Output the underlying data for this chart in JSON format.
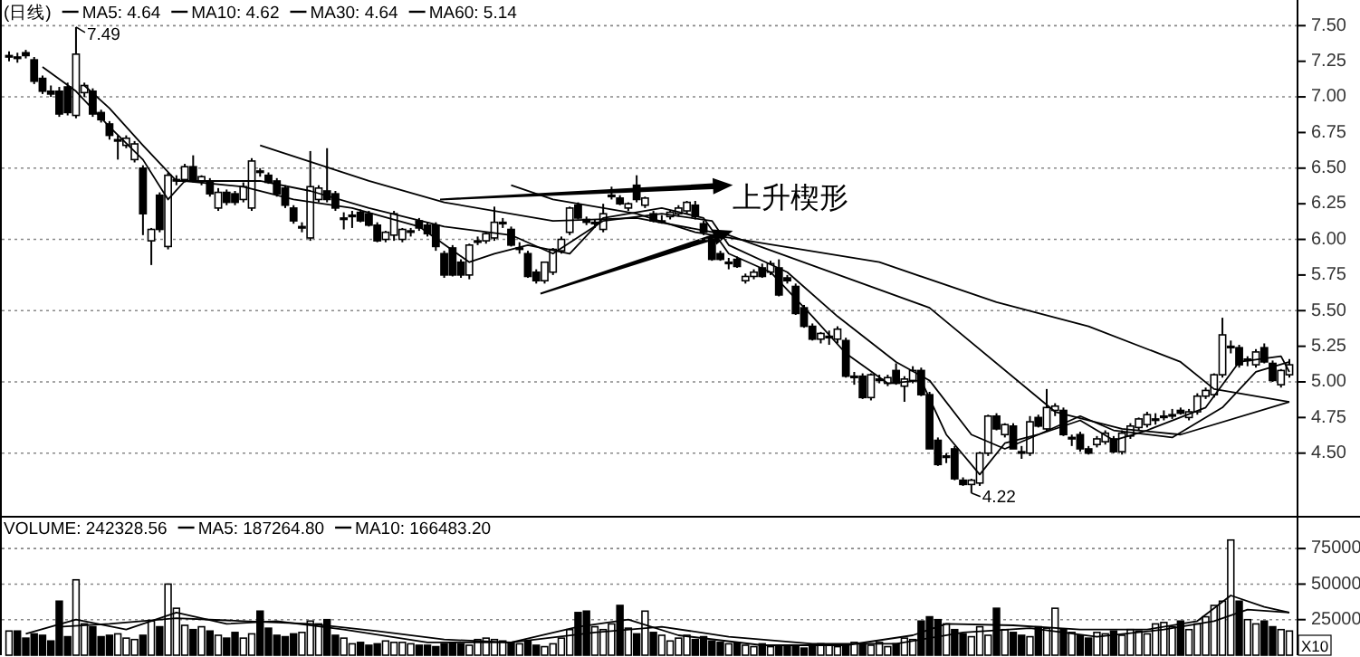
{
  "chart_data": [
    {
      "type": "candlestick",
      "title": "(日线)",
      "categories": [
        null,
        null,
        null,
        null,
        null,
        null,
        null,
        null,
        null,
        null,
        null,
        null,
        null,
        null,
        null,
        null,
        null,
        null,
        null,
        null,
        null,
        null,
        null,
        null,
        null,
        null,
        null,
        null,
        null,
        null,
        null,
        null,
        null,
        null,
        null,
        null,
        null,
        null,
        null,
        null,
        null,
        null,
        null,
        null,
        null,
        null,
        null,
        null,
        null,
        null,
        null,
        null,
        null,
        null,
        null,
        null,
        null,
        null,
        null,
        null,
        null,
        null,
        null,
        null,
        null,
        null,
        null,
        null,
        null,
        null,
        null,
        null,
        null,
        null,
        null,
        null,
        null,
        null,
        null,
        null,
        null,
        null,
        null,
        null,
        null,
        null,
        null,
        null,
        null,
        null,
        null,
        null,
        null,
        null,
        null,
        null,
        null,
        null,
        null,
        null,
        null,
        null,
        null,
        null,
        null,
        null,
        null,
        null,
        null,
        null,
        null,
        null,
        null,
        null,
        null,
        null,
        null,
        null,
        null,
        null,
        null,
        null,
        null,
        null,
        null,
        null,
        null,
        null,
        null,
        null,
        null,
        null,
        null,
        null,
        null,
        null,
        null,
        null,
        null,
        null,
        null,
        null,
        null,
        null,
        null,
        null,
        null,
        null,
        null,
        null,
        null,
        null,
        null,
        null
      ],
      "ohlc": [
        [
          7.29,
          7.32,
          7.25,
          7.29
        ],
        [
          7.28,
          7.31,
          7.24,
          7.27
        ],
        [
          7.31,
          7.33,
          7.27,
          7.29
        ],
        [
          7.26,
          7.28,
          7.09,
          7.11
        ],
        [
          7.13,
          7.15,
          7.02,
          7.04
        ],
        [
          7.04,
          7.08,
          7.0,
          7.02
        ],
        [
          7.04,
          7.07,
          6.86,
          6.88
        ],
        [
          7.07,
          7.1,
          6.87,
          6.89
        ],
        [
          6.87,
          7.49,
          6.85,
          7.3
        ],
        [
          7.03,
          7.1,
          7.0,
          7.08
        ],
        [
          7.04,
          7.06,
          6.86,
          6.88
        ],
        [
          6.89,
          6.91,
          6.82,
          6.84
        ],
        [
          6.81,
          6.83,
          6.7,
          6.73
        ],
        [
          6.7,
          6.73,
          6.56,
          6.7
        ],
        [
          6.66,
          6.73,
          6.64,
          6.71
        ],
        [
          6.56,
          6.69,
          6.54,
          6.67
        ],
        [
          6.5,
          6.52,
          6.03,
          6.18
        ],
        [
          5.99,
          6.08,
          5.82,
          6.07
        ],
        [
          6.31,
          6.33,
          6.05,
          6.07
        ],
        [
          5.95,
          6.47,
          5.93,
          6.45
        ],
        [
          6.42,
          6.45,
          6.38,
          6.42
        ],
        [
          6.42,
          6.53,
          6.4,
          6.51
        ],
        [
          6.51,
          6.59,
          6.4,
          6.42
        ],
        [
          6.41,
          6.45,
          6.38,
          6.44
        ],
        [
          6.41,
          6.43,
          6.3,
          6.32
        ],
        [
          6.22,
          6.36,
          6.2,
          6.33
        ],
        [
          6.33,
          6.35,
          6.24,
          6.26
        ],
        [
          6.32,
          6.34,
          6.24,
          6.26
        ],
        [
          6.28,
          6.4,
          6.26,
          6.37
        ],
        [
          6.22,
          6.57,
          6.2,
          6.55
        ],
        [
          6.48,
          6.5,
          6.44,
          6.47
        ],
        [
          6.45,
          6.47,
          6.39,
          6.4
        ],
        [
          6.41,
          6.43,
          6.3,
          6.32
        ],
        [
          6.36,
          6.38,
          6.22,
          6.24
        ],
        [
          6.22,
          6.24,
          6.11,
          6.13
        ],
        [
          6.09,
          6.12,
          6.05,
          6.09
        ],
        [
          6.01,
          6.62,
          5.99,
          6.37
        ],
        [
          6.28,
          6.38,
          6.26,
          6.36
        ],
        [
          6.34,
          6.64,
          6.26,
          6.28
        ],
        [
          6.32,
          6.34,
          6.2,
          6.22
        ],
        [
          6.15,
          6.19,
          6.07,
          6.15
        ],
        [
          6.17,
          6.2,
          6.08,
          6.17
        ],
        [
          6.19,
          6.21,
          6.12,
          6.13
        ],
        [
          6.18,
          6.2,
          6.09,
          6.1
        ],
        [
          6.1,
          6.12,
          5.98,
          5.99
        ],
        [
          6.0,
          6.06,
          5.98,
          6.05
        ],
        [
          6.03,
          6.2,
          5.99,
          6.18
        ],
        [
          6.0,
          6.08,
          5.98,
          6.07
        ],
        [
          6.05,
          6.08,
          6.02,
          6.06
        ],
        [
          6.13,
          6.15,
          6.06,
          6.08
        ],
        [
          6.1,
          6.12,
          6.02,
          6.04
        ],
        [
          6.1,
          6.12,
          5.92,
          5.95
        ],
        [
          5.9,
          5.92,
          5.73,
          5.75
        ],
        [
          5.94,
          5.96,
          5.74,
          5.75
        ],
        [
          5.84,
          5.86,
          5.73,
          5.75
        ],
        [
          5.75,
          5.97,
          5.72,
          5.96
        ],
        [
          5.99,
          6.02,
          5.96,
          5.99
        ],
        [
          5.99,
          6.05,
          5.97,
          6.04
        ],
        [
          6.01,
          6.23,
          5.99,
          6.12
        ],
        [
          6.12,
          6.15,
          6.08,
          6.12
        ],
        [
          6.07,
          6.09,
          5.95,
          5.96
        ],
        [
          5.94,
          5.98,
          5.9,
          5.94
        ],
        [
          5.9,
          5.92,
          5.73,
          5.74
        ],
        [
          5.77,
          5.79,
          5.69,
          5.71
        ],
        [
          5.71,
          5.84,
          5.69,
          5.84
        ],
        [
          5.77,
          5.94,
          5.75,
          5.93
        ],
        [
          5.92,
          6.02,
          5.9,
          6.0
        ],
        [
          6.05,
          6.23,
          6.03,
          6.22
        ],
        [
          6.24,
          6.26,
          6.14,
          6.15
        ],
        [
          6.14,
          6.16,
          6.1,
          6.12
        ],
        [
          6.12,
          6.14,
          6.08,
          6.12
        ],
        [
          6.07,
          6.25,
          6.05,
          6.18
        ],
        [
          6.31,
          6.37,
          6.28,
          6.31
        ],
        [
          6.29,
          6.31,
          6.24,
          6.25
        ],
        [
          6.22,
          6.26,
          6.2,
          6.25
        ],
        [
          6.38,
          6.45,
          6.26,
          6.28
        ],
        [
          6.24,
          6.3,
          6.22,
          6.29
        ],
        [
          6.18,
          6.2,
          6.12,
          6.13
        ],
        [
          6.13,
          6.17,
          6.11,
          6.13
        ],
        [
          6.16,
          6.2,
          6.14,
          6.19
        ],
        [
          6.18,
          6.24,
          6.16,
          6.22
        ],
        [
          6.2,
          6.27,
          6.18,
          6.26
        ],
        [
          6.24,
          6.27,
          6.14,
          6.16
        ],
        [
          6.11,
          6.13,
          6.03,
          6.05
        ],
        [
          6.0,
          6.03,
          5.85,
          5.86
        ],
        [
          5.9,
          5.92,
          5.85,
          5.86
        ],
        [
          5.84,
          5.87,
          5.79,
          5.84
        ],
        [
          5.86,
          5.88,
          5.8,
          5.81
        ],
        [
          5.71,
          5.76,
          5.69,
          5.74
        ],
        [
          5.74,
          5.79,
          5.72,
          5.77
        ],
        [
          5.8,
          5.83,
          5.73,
          5.74
        ],
        [
          5.77,
          5.85,
          5.75,
          5.83
        ],
        [
          5.8,
          5.86,
          5.6,
          5.61
        ],
        [
          5.73,
          5.75,
          5.69,
          5.71
        ],
        [
          5.67,
          5.69,
          5.47,
          5.48
        ],
        [
          5.52,
          5.54,
          5.38,
          5.39
        ],
        [
          5.39,
          5.41,
          5.29,
          5.3
        ],
        [
          5.3,
          5.35,
          5.27,
          5.34
        ],
        [
          5.32,
          5.36,
          5.26,
          5.32
        ],
        [
          5.3,
          5.39,
          5.27,
          5.37
        ],
        [
          5.29,
          5.31,
          5.03,
          5.04
        ],
        [
          5.04,
          5.07,
          4.98,
          5.04
        ],
        [
          5.04,
          5.06,
          4.88,
          4.89
        ],
        [
          4.89,
          5.06,
          4.87,
          5.05
        ],
        [
          5.02,
          5.05,
          4.99,
          5.02
        ],
        [
          4.99,
          5.05,
          4.97,
          5.03
        ],
        [
          5.08,
          5.13,
          4.98,
          4.99
        ],
        [
          4.97,
          5.04,
          4.86,
          5.02
        ],
        [
          5.01,
          5.11,
          4.99,
          5.08
        ],
        [
          5.08,
          5.1,
          4.9,
          4.91
        ],
        [
          4.91,
          4.93,
          4.53,
          4.53
        ],
        [
          4.59,
          4.61,
          4.41,
          4.42
        ],
        [
          4.48,
          4.5,
          4.43,
          4.48
        ],
        [
          4.53,
          4.55,
          4.31,
          4.32
        ],
        [
          4.31,
          4.33,
          4.27,
          4.28
        ],
        [
          4.28,
          4.32,
          4.22,
          4.31
        ],
        [
          4.29,
          4.51,
          4.27,
          4.5
        ],
        [
          4.5,
          4.77,
          4.48,
          4.76
        ],
        [
          4.76,
          4.78,
          4.66,
          4.67
        ],
        [
          4.63,
          4.71,
          4.61,
          4.7
        ],
        [
          4.69,
          4.71,
          4.53,
          4.53
        ],
        [
          4.51,
          4.55,
          4.46,
          4.5
        ],
        [
          4.5,
          4.76,
          4.48,
          4.72
        ],
        [
          4.75,
          4.77,
          4.68,
          4.69
        ],
        [
          4.67,
          4.95,
          4.65,
          4.82
        ],
        [
          4.8,
          4.85,
          4.76,
          4.83
        ],
        [
          4.8,
          4.82,
          4.62,
          4.63
        ],
        [
          4.6,
          4.63,
          4.55,
          4.61
        ],
        [
          4.63,
          4.65,
          4.51,
          4.53
        ],
        [
          4.53,
          4.55,
          4.49,
          4.5
        ],
        [
          4.56,
          4.62,
          4.54,
          4.6
        ],
        [
          4.58,
          4.66,
          4.56,
          4.64
        ],
        [
          4.6,
          4.62,
          4.5,
          4.51
        ],
        [
          4.51,
          4.66,
          4.49,
          4.64
        ],
        [
          4.62,
          4.71,
          4.6,
          4.69
        ],
        [
          4.68,
          4.75,
          4.66,
          4.74
        ],
        [
          4.7,
          4.79,
          4.68,
          4.77
        ],
        [
          4.74,
          4.78,
          4.7,
          4.74
        ],
        [
          4.76,
          4.8,
          4.73,
          4.76
        ],
        [
          4.77,
          4.81,
          4.74,
          4.77
        ],
        [
          4.8,
          4.82,
          4.77,
          4.78
        ],
        [
          4.75,
          4.81,
          4.73,
          4.79
        ],
        [
          4.79,
          4.92,
          4.77,
          4.9
        ],
        [
          4.9,
          4.96,
          4.88,
          4.94
        ],
        [
          4.91,
          5.06,
          4.89,
          5.05
        ],
        [
          5.05,
          5.45,
          5.03,
          5.33
        ],
        [
          5.25,
          5.29,
          5.2,
          5.25
        ],
        [
          5.24,
          5.26,
          5.1,
          5.12
        ],
        [
          5.16,
          5.18,
          5.11,
          5.16
        ],
        [
          5.12,
          5.23,
          5.1,
          5.21
        ],
        [
          5.24,
          5.27,
          5.13,
          5.14
        ],
        [
          5.13,
          5.15,
          5.0,
          5.01
        ],
        [
          4.98,
          5.09,
          4.96,
          5.08
        ],
        [
          5.05,
          5.16,
          5.03,
          5.12
        ]
      ],
      "series": [
        {
          "name": "MA5: 4.64",
          "type": "line",
          "color": "#000000",
          "values": [
            null,
            null,
            null,
            null,
            7.21,
            null,
            null,
            null,
            7.04,
            null,
            null,
            null,
            6.79,
            null,
            null,
            null,
            6.56,
            null,
            null,
            6.28,
            null,
            6.41,
            null,
            null,
            null,
            null,
            null,
            null,
            6.37,
            null,
            null,
            null,
            null,
            null,
            6.28,
            null,
            null,
            null,
            null,
            null,
            null,
            6.22,
            null,
            null,
            null,
            null,
            null,
            null,
            null,
            6.09,
            null,
            null,
            null,
            null,
            null,
            5.84,
            null,
            null,
            5.9,
            null,
            null,
            null,
            5.96,
            null,
            null,
            null,
            null,
            5.9,
            null,
            null,
            null,
            6.15,
            null,
            null,
            null,
            null,
            null,
            null,
            6.22,
            null,
            null,
            null,
            null,
            6.15,
            null,
            null,
            5.9,
            null,
            null,
            null,
            null,
            5.77,
            null,
            null,
            null,
            null,
            5.46,
            null,
            null,
            null,
            5.2,
            null,
            null,
            null,
            null,
            4.99,
            null,
            null,
            null,
            5.01,
            null,
            null,
            4.63,
            null,
            null,
            null,
            4.35,
            null,
            null,
            4.57,
            null,
            null,
            null,
            4.63,
            null,
            null,
            null,
            null,
            4.73,
            null,
            null,
            null,
            4.59,
            null,
            null,
            null,
            4.66,
            null,
            null,
            null,
            null,
            null,
            null,
            4.82,
            null,
            null,
            null,
            5.14,
            null,
            null,
            null,
            null,
            5.18,
            5.07
          ]
        },
        {
          "name": "MA10: 4.62",
          "type": "line",
          "color": "#000000",
          "values": [
            null,
            null,
            null,
            null,
            null,
            null,
            null,
            null,
            null,
            7.08,
            null,
            null,
            6.92,
            null,
            null,
            null,
            6.66,
            null,
            null,
            null,
            6.41,
            null,
            null,
            null,
            null,
            null,
            null,
            null,
            null,
            null,
            6.41,
            null,
            null,
            null,
            null,
            null,
            6.34,
            null,
            null,
            null,
            null,
            null,
            null,
            6.22,
            null,
            null,
            null,
            null,
            null,
            null,
            null,
            null,
            6.09,
            null,
            null,
            null,
            null,
            null,
            null,
            null,
            6.03,
            null,
            null,
            null,
            null,
            5.9,
            null,
            null,
            null,
            null,
            null,
            6.13,
            null,
            null,
            null,
            null,
            null,
            null,
            6.18,
            null,
            null,
            null,
            null,
            null,
            6.13,
            null,
            5.96,
            null,
            null,
            null,
            null,
            null,
            null,
            5.77,
            null,
            null,
            null,
            null,
            null,
            5.46,
            null,
            null,
            null,
            null,
            null,
            null,
            5.14,
            null,
            null,
            null,
            5.01,
            null,
            null,
            null,
            null,
            4.63,
            null,
            null,
            null,
            4.53,
            null,
            null,
            null,
            4.63,
            null,
            null,
            null,
            null,
            4.76,
            null,
            null,
            null,
            4.66,
            null,
            null,
            null,
            null,
            null,
            null,
            4.61,
            null,
            null,
            null,
            null,
            null,
            4.82,
            null,
            null,
            null,
            5.07,
            null,
            null,
            null,
            5.14
          ]
        },
        {
          "name": "MA30: 4.64",
          "type": "line",
          "color": "#000000",
          "values": [
            null,
            null,
            null,
            null,
            null,
            null,
            null,
            null,
            null,
            null,
            null,
            null,
            null,
            null,
            null,
            null,
            null,
            null,
            null,
            null,
            null,
            null,
            null,
            null,
            null,
            null,
            null,
            null,
            null,
            null,
            6.66,
            null,
            null,
            null,
            null,
            null,
            null,
            null,
            null,
            null,
            null,
            null,
            null,
            6.41,
            null,
            null,
            null,
            null,
            null,
            null,
            null,
            null,
            6.26,
            null,
            null,
            null,
            null,
            null,
            null,
            null,
            null,
            null,
            null,
            null,
            null,
            6.13,
            null,
            null,
            null,
            null,
            null,
            null,
            null,
            null,
            null,
            6.15,
            null,
            null,
            null,
            null,
            null,
            null,
            null,
            null,
            null,
            null,
            6.03,
            null,
            null,
            null,
            null,
            null,
            null,
            null,
            null,
            null,
            null,
            null,
            null,
            null,
            null,
            null,
            null,
            null,
            null,
            null,
            null,
            null,
            null,
            null,
            5.52,
            null,
            null,
            null,
            null,
            null,
            null,
            null,
            null,
            null,
            null,
            null,
            null,
            null,
            null,
            4.79,
            null,
            null,
            null,
            null,
            null,
            null,
            null,
            4.67,
            null,
            null,
            null,
            null,
            null,
            null,
            4.63,
            null,
            null,
            null,
            null,
            null,
            null,
            null,
            null,
            null,
            null,
            null,
            null,
            4.86
          ]
        },
        {
          "name": "MA60: 5.14",
          "type": "line",
          "color": "#000000",
          "values": [
            null,
            null,
            null,
            null,
            null,
            null,
            null,
            null,
            null,
            null,
            null,
            null,
            null,
            null,
            null,
            null,
            null,
            null,
            null,
            null,
            null,
            null,
            null,
            null,
            null,
            null,
            null,
            null,
            null,
            null,
            null,
            null,
            null,
            null,
            null,
            null,
            null,
            null,
            null,
            null,
            null,
            null,
            null,
            null,
            null,
            null,
            null,
            null,
            null,
            null,
            null,
            null,
            null,
            null,
            null,
            null,
            null,
            null,
            null,
            null,
            6.38,
            null,
            null,
            null,
            null,
            6.28,
            null,
            null,
            null,
            null,
            null,
            null,
            null,
            null,
            null,
            6.18,
            null,
            null,
            null,
            null,
            null,
            null,
            6.05,
            null,
            null,
            null,
            null,
            null,
            null,
            null,
            null,
            null,
            null,
            null,
            null,
            null,
            null,
            null,
            null,
            null,
            null,
            null,
            null,
            null,
            5.84,
            null,
            null,
            null,
            null,
            null,
            null,
            null,
            null,
            null,
            null,
            null,
            null,
            null,
            5.56,
            null,
            null,
            null,
            null,
            null,
            null,
            null,
            null,
            null,
            null,
            5.39,
            null,
            null,
            null,
            null,
            null,
            null,
            null,
            null,
            null,
            null,
            5.14,
            null,
            null,
            null,
            4.95,
            null,
            null,
            null,
            null,
            null,
            null,
            null,
            null,
            4.86
          ]
        }
      ],
      "ylim": [
        4.06,
        7.68
      ],
      "yticks": [
        {
          "value": 4.5,
          "label": "4.50"
        },
        {
          "value": 4.75,
          "label": "4.75"
        },
        {
          "value": 5,
          "label": "5.00"
        },
        {
          "value": 5.25,
          "label": "5.25"
        },
        {
          "value": 5.5,
          "label": "5.50"
        },
        {
          "value": 5.75,
          "label": "5.75"
        },
        {
          "value": 6,
          "label": "6.00"
        },
        {
          "value": 6.25,
          "label": "6.25"
        },
        {
          "value": 6.5,
          "label": "6.50"
        },
        {
          "value": 6.75,
          "label": "6.75"
        },
        {
          "value": 7,
          "label": "7.00"
        },
        {
          "value": 7.25,
          "label": "7.25"
        },
        {
          "value": 7.5,
          "label": "7.50"
        }
      ],
      "grid": "y",
      "legend": "top left",
      "annotations": [
        "7.49",
        "4.22",
        "上升楔形"
      ]
    },
    {
      "type": "bar",
      "categories": [
        null,
        null,
        null,
        null,
        null,
        null,
        null,
        null,
        null,
        null,
        null,
        null,
        null,
        null,
        null,
        null,
        null,
        null,
        null,
        null,
        null,
        null,
        null,
        null,
        null,
        null,
        null,
        null,
        null,
        null,
        null,
        null,
        null,
        null,
        null,
        null,
        null,
        null,
        null,
        null,
        null,
        null,
        null,
        null,
        null,
        null,
        null,
        null,
        null,
        null,
        null,
        null,
        null,
        null,
        null,
        null,
        null,
        null,
        null,
        null,
        null,
        null,
        null,
        null,
        null,
        null,
        null,
        null,
        null,
        null,
        null,
        null,
        null,
        null,
        null,
        null,
        null,
        null,
        null,
        null,
        null,
        null,
        null,
        null,
        null,
        null,
        null,
        null,
        null,
        null,
        null,
        null,
        null,
        null,
        null,
        null,
        null,
        null,
        null,
        null,
        null,
        null,
        null,
        null,
        null,
        null,
        null,
        null,
        null,
        null,
        null,
        null,
        null,
        null,
        null,
        null,
        null,
        null,
        null,
        null,
        null,
        null,
        null,
        null,
        null,
        null,
        null,
        null,
        null,
        null,
        null,
        null,
        null,
        null,
        null,
        null,
        null,
        null,
        null,
        null,
        null,
        null,
        null,
        null,
        null,
        null,
        null,
        null,
        null,
        null,
        null,
        null,
        null,
        null
      ],
      "series": [
        {
          "name": "VOLUME: 242328.56",
          "type": "bar",
          "color": "#000000",
          "values": [
            17000,
            17000,
            12000,
            15000,
            14000,
            10000,
            38000,
            13000,
            53000,
            22000,
            20000,
            13000,
            14000,
            15000,
            12000,
            11000,
            14000,
            24000,
            20000,
            50000,
            33000,
            21000,
            18000,
            20000,
            17000,
            14000,
            12000,
            16000,
            12000,
            15000,
            31000,
            19000,
            14000,
            13000,
            15000,
            16000,
            24000,
            22000,
            25000,
            14000,
            12000,
            8000,
            9000,
            7000,
            8000,
            10000,
            9000,
            9000,
            8000,
            7000,
            7000,
            6000,
            8000,
            9000,
            8000,
            7000,
            11000,
            12000,
            11000,
            10000,
            9000,
            8000,
            10000,
            7000,
            6000,
            8000,
            12000,
            18000,
            30000,
            31000,
            20000,
            18000,
            22000,
            35000,
            19000,
            15000,
            31000,
            16000,
            14000,
            10000,
            12000,
            14000,
            11000,
            13000,
            10000,
            9000,
            8000,
            9000,
            7000,
            6000,
            8000,
            6000,
            7000,
            6000,
            7000,
            5000,
            6000,
            8000,
            7000,
            6000,
            7000,
            9000,
            8000,
            7000,
            9000,
            6000,
            8000,
            12000,
            11000,
            24000,
            27000,
            25000,
            22000,
            18000,
            15000,
            13000,
            20000,
            14000,
            33000,
            18000,
            16000,
            14000,
            13000,
            20000,
            19000,
            33000,
            18000,
            16000,
            14000,
            12000,
            16000,
            15000,
            17000,
            14000,
            18000,
            17000,
            15000,
            22000,
            23000,
            20000,
            24000,
            18000,
            22000,
            27000,
            35000,
            38000,
            81000,
            38000,
            25000,
            22000,
            24000,
            20000,
            18000,
            17000
          ]
        },
        {
          "name": "MA5: 187264.80",
          "type": "line",
          "color": "#000000",
          "values": [
            null,
            null,
            15000,
            null,
            null,
            null,
            null,
            null,
            25000,
            null,
            null,
            null,
            null,
            null,
            18000,
            null,
            null,
            null,
            null,
            null,
            30000,
            null,
            null,
            null,
            null,
            null,
            22000,
            null,
            null,
            null,
            null,
            null,
            24000,
            null,
            null,
            null,
            null,
            null,
            null,
            null,
            18000,
            null,
            null,
            null,
            null,
            null,
            null,
            null,
            null,
            null,
            9000,
            null,
            null,
            null,
            null,
            null,
            null,
            null,
            null,
            null,
            9000,
            null,
            null,
            null,
            null,
            null,
            null,
            null,
            20000,
            null,
            null,
            null,
            null,
            null,
            25000,
            null,
            null,
            null,
            null,
            null,
            14000,
            null,
            null,
            null,
            null,
            null,
            null,
            null,
            null,
            null,
            7000,
            null,
            null,
            null,
            null,
            null,
            null,
            null,
            null,
            null,
            7000,
            null,
            null,
            null,
            null,
            null,
            null,
            null,
            14000,
            null,
            null,
            null,
            22000,
            null,
            null,
            null,
            null,
            null,
            null,
            null,
            21000,
            null,
            null,
            null,
            null,
            null,
            null,
            null,
            18000,
            null,
            null,
            null,
            null,
            null,
            null,
            null,
            18000,
            null,
            null,
            null,
            null,
            null,
            24000,
            null,
            null,
            null,
            42000,
            null,
            null,
            null,
            34000,
            null,
            null,
            30000
          ]
        },
        {
          "name": "MA10: 166483.20",
          "type": "line",
          "color": "#000000",
          "values": [
            null,
            null,
            null,
            null,
            null,
            null,
            20000,
            null,
            null,
            null,
            null,
            null,
            22000,
            null,
            null,
            null,
            null,
            null,
            null,
            null,
            26000,
            null,
            null,
            null,
            null,
            null,
            null,
            null,
            24000,
            null,
            null,
            null,
            null,
            null,
            null,
            null,
            22000,
            null,
            null,
            null,
            null,
            null,
            null,
            null,
            17000,
            null,
            null,
            null,
            null,
            null,
            null,
            null,
            11000,
            null,
            null,
            null,
            null,
            null,
            null,
            null,
            9000,
            null,
            null,
            null,
            null,
            null,
            null,
            null,
            null,
            null,
            16000,
            null,
            null,
            null,
            null,
            null,
            null,
            null,
            20000,
            null,
            null,
            null,
            null,
            null,
            null,
            null,
            13000,
            null,
            null,
            null,
            null,
            null,
            null,
            null,
            null,
            null,
            8000,
            null,
            null,
            null,
            null,
            null,
            null,
            null,
            null,
            null,
            8000,
            null,
            null,
            null,
            null,
            null,
            null,
            null,
            16000,
            null,
            null,
            null,
            null,
            null,
            null,
            null,
            19000,
            null,
            null,
            null,
            null,
            null,
            null,
            null,
            13000,
            null,
            null,
            null,
            null,
            null,
            null,
            null,
            18000,
            null,
            null,
            null,
            null,
            null,
            24000,
            null,
            null,
            null,
            32000,
            null,
            null,
            null,
            null,
            30000
          ]
        }
      ],
      "ylim": [
        0,
        98000
      ],
      "yticks": [
        25000,
        50000,
        75000
      ],
      "grid": "y",
      "legend": "top left",
      "annotations": [
        "X10"
      ]
    }
  ]
}
